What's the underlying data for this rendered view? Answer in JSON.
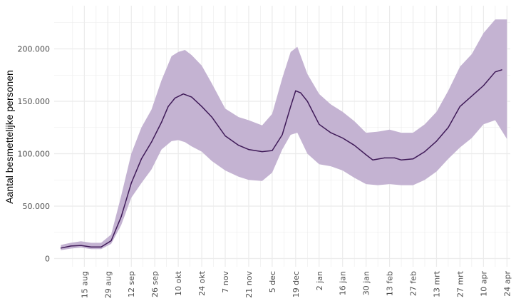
{
  "chart_data": {
    "type": "line",
    "title": "",
    "xlabel": "",
    "ylabel": "Aantal besmettelijke personen",
    "ylim": [
      0,
      230000
    ],
    "y_ticks": [
      {
        "value": 0,
        "label": "0"
      },
      {
        "value": 50000,
        "label": "50.000"
      },
      {
        "value": 100000,
        "label": "100.000"
      },
      {
        "value": 150000,
        "label": "150.000"
      },
      {
        "value": 200000,
        "label": "200.000"
      }
    ],
    "x_ticks": [
      {
        "date": "2020-08-15",
        "label": "15 aug"
      },
      {
        "date": "2020-08-29",
        "label": "29 aug"
      },
      {
        "date": "2020-09-12",
        "label": "12 sep"
      },
      {
        "date": "2020-09-26",
        "label": "26 sep"
      },
      {
        "date": "2020-10-10",
        "label": "10 okt"
      },
      {
        "date": "2020-10-24",
        "label": "24 okt"
      },
      {
        "date": "2020-11-07",
        "label": "7 nov"
      },
      {
        "date": "2020-11-21",
        "label": "21 nov"
      },
      {
        "date": "2020-12-05",
        "label": "5 dec"
      },
      {
        "date": "2020-12-19",
        "label": "19 dec"
      },
      {
        "date": "2021-01-02",
        "label": "2 jan"
      },
      {
        "date": "2021-01-16",
        "label": "16 jan"
      },
      {
        "date": "2021-01-30",
        "label": "30 jan"
      },
      {
        "date": "2021-02-13",
        "label": "13 feb"
      },
      {
        "date": "2021-02-27",
        "label": "27 feb"
      },
      {
        "date": "2021-03-13",
        "label": "13 mrt"
      },
      {
        "date": "2021-03-27",
        "label": "27 mrt"
      },
      {
        "date": "2021-04-10",
        "label": "10 apr"
      },
      {
        "date": "2021-04-24",
        "label": "24 apr"
      }
    ],
    "grid": true,
    "colors": {
      "line": "#3f1a58",
      "band": "#c4b3d2",
      "grid": "#ebebeb"
    },
    "band": {
      "x": [
        "2020-08-01",
        "2020-08-07",
        "2020-08-13",
        "2020-08-19",
        "2020-08-25",
        "2020-08-31",
        "2020-09-06",
        "2020-09-12",
        "2020-09-18",
        "2020-09-24",
        "2020-09-30",
        "2020-10-06",
        "2020-10-10",
        "2020-10-14",
        "2020-10-18",
        "2020-10-24",
        "2020-10-30",
        "2020-11-07",
        "2020-11-15",
        "2020-11-21",
        "2020-11-29",
        "2020-12-05",
        "2020-12-11",
        "2020-12-16",
        "2020-12-20",
        "2020-12-26",
        "2021-01-02",
        "2021-01-09",
        "2021-01-16",
        "2021-01-23",
        "2021-01-30",
        "2021-02-06",
        "2021-02-13",
        "2021-02-20",
        "2021-02-27",
        "2021-03-06",
        "2021-03-13",
        "2021-03-20",
        "2021-03-27",
        "2021-04-03",
        "2021-04-10",
        "2021-04-17",
        "2021-04-24"
      ],
      "lower": [
        8000,
        9500,
        10500,
        9000,
        9000,
        14000,
        32000,
        58000,
        72000,
        85000,
        104000,
        112000,
        113000,
        111000,
        107000,
        102000,
        93000,
        84000,
        78000,
        75000,
        74000,
        82000,
        104000,
        118000,
        120000,
        100000,
        90000,
        88000,
        84000,
        77000,
        71000,
        70000,
        71000,
        70000,
        70000,
        75000,
        83000,
        95000,
        106000,
        115000,
        128000,
        132000,
        114000
      ],
      "upper": [
        13000,
        15000,
        16500,
        15000,
        15000,
        23000,
        60000,
        100000,
        125000,
        142000,
        170000,
        193000,
        197000,
        199000,
        194000,
        184000,
        167000,
        143000,
        135000,
        132000,
        127000,
        138000,
        172000,
        197000,
        202000,
        176000,
        157000,
        147000,
        140000,
        131000,
        120000,
        121000,
        123000,
        120000,
        120000,
        128000,
        140000,
        160000,
        183000,
        195000,
        215000,
        228000,
        228000
      ]
    },
    "series": [
      {
        "x": [
          "2020-08-01",
          "2020-08-07",
          "2020-08-13",
          "2020-08-19",
          "2020-08-25",
          "2020-08-31",
          "2020-09-06",
          "2020-09-12",
          "2020-09-18",
          "2020-09-24",
          "2020-09-30",
          "2020-10-04",
          "2020-10-08",
          "2020-10-13",
          "2020-10-18",
          "2020-10-24",
          "2020-10-30",
          "2020-11-07",
          "2020-11-15",
          "2020-11-21",
          "2020-11-29",
          "2020-12-05",
          "2020-12-11",
          "2020-12-16",
          "2020-12-19",
          "2020-12-22",
          "2020-12-26",
          "2021-01-02",
          "2021-01-09",
          "2021-01-16",
          "2021-01-23",
          "2021-01-30",
          "2021-02-03",
          "2021-02-10",
          "2021-02-16",
          "2021-02-20",
          "2021-02-27",
          "2021-03-06",
          "2021-03-13",
          "2021-03-20",
          "2021-03-27",
          "2021-04-03",
          "2021-04-10",
          "2021-04-17",
          "2021-04-21"
        ],
        "y": [
          10000,
          12000,
          12500,
          11000,
          11000,
          17000,
          40000,
          72000,
          95000,
          111000,
          130000,
          145000,
          153000,
          157000,
          154000,
          145000,
          135000,
          117000,
          108000,
          104000,
          102000,
          103000,
          118000,
          145000,
          160000,
          158000,
          150000,
          128000,
          120000,
          115000,
          108000,
          99000,
          94000,
          96000,
          96000,
          94000,
          95000,
          102000,
          112000,
          125000,
          145000,
          155000,
          165000,
          178000,
          180000
        ]
      }
    ]
  }
}
